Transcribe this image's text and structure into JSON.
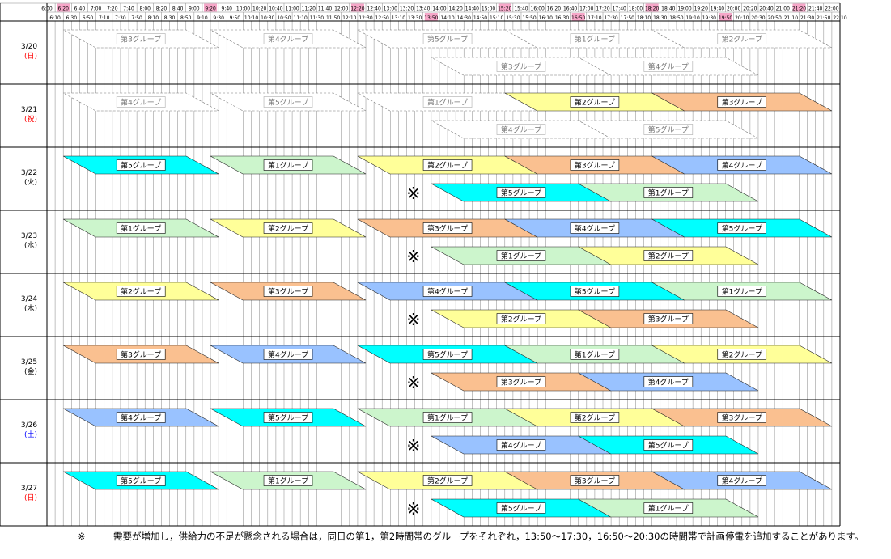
{
  "chart_data": {
    "type": "timeline",
    "title": "",
    "time_slots_top": [
      "6:00",
      "6:20",
      "6:40",
      "7:00",
      "7:20",
      "7:40",
      "8:00",
      "8:20",
      "8:40",
      "9:00",
      "9:20",
      "9:40",
      "10:00",
      "10:20",
      "10:40",
      "11:00",
      "11:20",
      "11:40",
      "12:00",
      "12:20",
      "12:40",
      "13:00",
      "13:20",
      "13:40",
      "14:00",
      "14:20",
      "14:40",
      "15:00",
      "15:20",
      "15:40",
      "16:00",
      "16:20",
      "16:40",
      "17:00",
      "17:20",
      "17:40",
      "18:00",
      "18:20",
      "18:40",
      "19:00",
      "19:20",
      "19:40",
      "20:00",
      "20:20",
      "20:40",
      "21:00",
      "21:20",
      "21:40",
      "22:00"
    ],
    "time_slots_bottom": [
      "6:10",
      "6:30",
      "6:50",
      "7:10",
      "7:30",
      "7:50",
      "8:10",
      "8:30",
      "8:50",
      "9:10",
      "9:30",
      "9:50",
      "10:10",
      "10:30",
      "10:50",
      "11:10",
      "11:30",
      "11:50",
      "12:10",
      "12:30",
      "12:50",
      "13:10",
      "13:30",
      "13:50",
      "14:10",
      "14:30",
      "14:50",
      "15:10",
      "15:30",
      "15:50",
      "16:10",
      "16:30",
      "16:50",
      "17:10",
      "17:30",
      "17:50",
      "18:10",
      "18:30",
      "18:50",
      "19:10",
      "19:30",
      "19:50",
      "20:10",
      "20:30",
      "20:50",
      "21:10",
      "21:30",
      "21:50",
      "22:10"
    ],
    "highlighted_times": [
      "6:20",
      "9:20",
      "12:20",
      "13:50",
      "15:20",
      "16:50",
      "18:20",
      "19:50",
      "21:20"
    ],
    "highlight_color": "#f6a6c8",
    "group_colors": {
      "第1グループ": "#ccf5cc",
      "第2グループ": "#ffff99",
      "第3グループ": "#fac090",
      "第4グループ": "#99c2ff",
      "第5グループ": "#00ffff",
      "inactive": "#ffffff"
    },
    "days": [
      {
        "date": "3/20",
        "weekday": "(日)",
        "weekday_color": "#ff0000",
        "row1": [
          {
            "group": "第3グループ",
            "start": "6:20",
            "end": "9:30",
            "active": false
          },
          {
            "group": "第4グループ",
            "start": "9:20",
            "end": "12:30",
            "active": false
          },
          {
            "group": "第5グループ",
            "start": "12:20",
            "end": "16:00",
            "active": false
          },
          {
            "group": "第1グループ",
            "start": "15:20",
            "end": "19:00",
            "active": false
          },
          {
            "group": "第2グループ",
            "start": "18:20",
            "end": "22:00",
            "active": false
          }
        ],
        "row2": [
          {
            "group": "第3グループ",
            "start": "13:50",
            "end": "17:30",
            "active": false
          },
          {
            "group": "第4グループ",
            "start": "16:50",
            "end": "20:30",
            "active": false
          }
        ],
        "asterisk": false
      },
      {
        "date": "3/21",
        "weekday": "(祝)",
        "weekday_color": "#ff0000",
        "row1": [
          {
            "group": "第4グループ",
            "start": "6:20",
            "end": "9:30",
            "active": false
          },
          {
            "group": "第5グループ",
            "start": "9:20",
            "end": "12:30",
            "active": false
          },
          {
            "group": "第1グループ",
            "start": "12:20",
            "end": "16:00",
            "active": false
          },
          {
            "group": "第2グループ",
            "start": "15:20",
            "end": "19:00",
            "active": true
          },
          {
            "group": "第3グループ",
            "start": "18:20",
            "end": "22:00",
            "active": true
          }
        ],
        "row2": [
          {
            "group": "第4グループ",
            "start": "13:50",
            "end": "17:30",
            "active": false
          },
          {
            "group": "第5グループ",
            "start": "16:50",
            "end": "20:30",
            "active": false
          }
        ],
        "asterisk": false
      },
      {
        "date": "3/22",
        "weekday": "(火)",
        "weekday_color": "#000000",
        "row1": [
          {
            "group": "第5グループ",
            "start": "6:20",
            "end": "9:30",
            "active": true
          },
          {
            "group": "第1グループ",
            "start": "9:20",
            "end": "12:30",
            "active": true
          },
          {
            "group": "第2グループ",
            "start": "12:20",
            "end": "16:00",
            "active": true
          },
          {
            "group": "第3グループ",
            "start": "15:20",
            "end": "19:00",
            "active": true
          },
          {
            "group": "第4グループ",
            "start": "18:20",
            "end": "22:00",
            "active": true
          }
        ],
        "row2": [
          {
            "group": "第5グループ",
            "start": "13:50",
            "end": "17:30",
            "active": true
          },
          {
            "group": "第1グループ",
            "start": "16:50",
            "end": "20:30",
            "active": true
          }
        ],
        "asterisk": true
      },
      {
        "date": "3/23",
        "weekday": "(水)",
        "weekday_color": "#000000",
        "row1": [
          {
            "group": "第1グループ",
            "start": "6:20",
            "end": "9:30",
            "active": true
          },
          {
            "group": "第2グループ",
            "start": "9:20",
            "end": "12:30",
            "active": true
          },
          {
            "group": "第3グループ",
            "start": "12:20",
            "end": "16:00",
            "active": true
          },
          {
            "group": "第4グループ",
            "start": "15:20",
            "end": "19:00",
            "active": true
          },
          {
            "group": "第5グループ",
            "start": "18:20",
            "end": "22:00",
            "active": true
          }
        ],
        "row2": [
          {
            "group": "第1グループ",
            "start": "13:50",
            "end": "17:30",
            "active": true
          },
          {
            "group": "第2グループ",
            "start": "16:50",
            "end": "20:30",
            "active": true
          }
        ],
        "asterisk": true
      },
      {
        "date": "3/24",
        "weekday": "(木)",
        "weekday_color": "#000000",
        "row1": [
          {
            "group": "第2グループ",
            "start": "6:20",
            "end": "9:30",
            "active": true
          },
          {
            "group": "第3グループ",
            "start": "9:20",
            "end": "12:30",
            "active": true
          },
          {
            "group": "第4グループ",
            "start": "12:20",
            "end": "16:00",
            "active": true
          },
          {
            "group": "第5グループ",
            "start": "15:20",
            "end": "19:00",
            "active": true
          },
          {
            "group": "第1グループ",
            "start": "18:20",
            "end": "22:00",
            "active": true
          }
        ],
        "row2": [
          {
            "group": "第2グループ",
            "start": "13:50",
            "end": "17:30",
            "active": true
          },
          {
            "group": "第3グループ",
            "start": "16:50",
            "end": "20:30",
            "active": true
          }
        ],
        "asterisk": true
      },
      {
        "date": "3/25",
        "weekday": "(金)",
        "weekday_color": "#000000",
        "row1": [
          {
            "group": "第3グループ",
            "start": "6:20",
            "end": "9:30",
            "active": true
          },
          {
            "group": "第4グループ",
            "start": "9:20",
            "end": "12:30",
            "active": true
          },
          {
            "group": "第5グループ",
            "start": "12:20",
            "end": "16:00",
            "active": true
          },
          {
            "group": "第1グループ",
            "start": "15:20",
            "end": "19:00",
            "active": true
          },
          {
            "group": "第2グループ",
            "start": "18:20",
            "end": "22:00",
            "active": true
          }
        ],
        "row2": [
          {
            "group": "第3グループ",
            "start": "13:50",
            "end": "17:30",
            "active": true
          },
          {
            "group": "第4グループ",
            "start": "16:50",
            "end": "20:30",
            "active": true
          }
        ],
        "asterisk": true
      },
      {
        "date": "3/26",
        "weekday": "(土)",
        "weekday_color": "#0000ff",
        "row1": [
          {
            "group": "第4グループ",
            "start": "6:20",
            "end": "9:30",
            "active": true
          },
          {
            "group": "第5グループ",
            "start": "9:20",
            "end": "12:30",
            "active": true
          },
          {
            "group": "第1グループ",
            "start": "12:20",
            "end": "16:00",
            "active": true
          },
          {
            "group": "第2グループ",
            "start": "15:20",
            "end": "19:00",
            "active": true
          },
          {
            "group": "第3グループ",
            "start": "18:20",
            "end": "22:00",
            "active": true
          }
        ],
        "row2": [
          {
            "group": "第4グループ",
            "start": "13:50",
            "end": "17:30",
            "active": true
          },
          {
            "group": "第5グループ",
            "start": "16:50",
            "end": "20:30",
            "active": true
          }
        ],
        "asterisk": true
      },
      {
        "date": "3/27",
        "weekday": "(日)",
        "weekday_color": "#ff0000",
        "row1": [
          {
            "group": "第5グループ",
            "start": "6:20",
            "end": "9:30",
            "active": true
          },
          {
            "group": "第1グループ",
            "start": "9:20",
            "end": "12:30",
            "active": true
          },
          {
            "group": "第2グループ",
            "start": "12:20",
            "end": "16:00",
            "active": true
          },
          {
            "group": "第3グループ",
            "start": "15:20",
            "end": "19:00",
            "active": true
          },
          {
            "group": "第4グループ",
            "start": "18:20",
            "end": "22:00",
            "active": true
          }
        ],
        "row2": [
          {
            "group": "第5グループ",
            "start": "13:50",
            "end": "17:30",
            "active": true
          },
          {
            "group": "第1グループ",
            "start": "16:50",
            "end": "20:30",
            "active": true
          }
        ],
        "asterisk": true
      }
    ],
    "asterisk_symbol": "※"
  },
  "footnote": {
    "mark": "※",
    "text": "需要が増加し，供給力の不足が懸念される場合は，同日の第1，第2時間帯のグループをそれぞれ，13:50～17:30，16:50～20:30の時間帯で計画停電を追加することがあります。"
  }
}
